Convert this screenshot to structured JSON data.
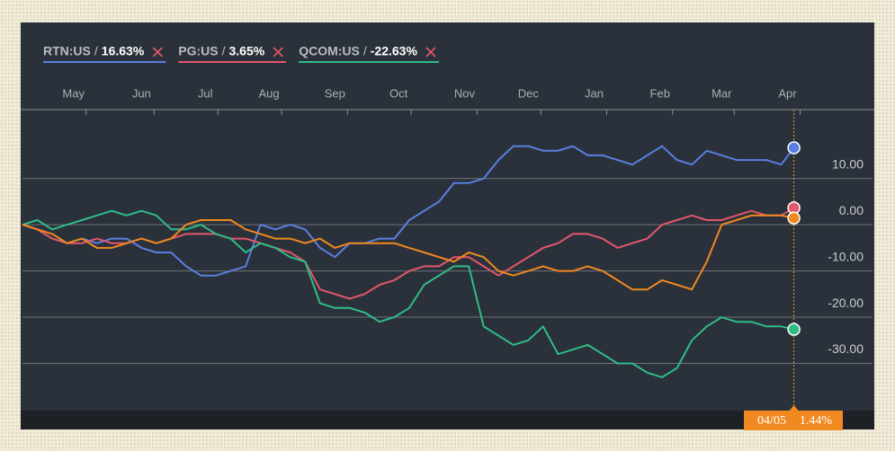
{
  "chart_data": {
    "type": "line",
    "legend_separator": "/",
    "x": [
      0,
      7,
      14,
      21,
      28,
      35,
      42,
      49,
      56,
      63,
      70,
      77,
      84,
      91,
      98,
      105,
      112,
      119,
      126,
      133,
      140,
      147,
      154,
      161,
      168,
      175,
      182,
      189,
      196,
      203,
      210,
      217,
      224,
      231,
      238,
      245,
      252,
      259,
      266,
      273,
      280,
      287,
      294,
      301,
      308,
      315,
      322,
      329,
      336,
      343,
      350,
      357,
      363
    ],
    "xlim": [
      0,
      400
    ],
    "xticks": [
      {
        "value": 24,
        "label": "May"
      },
      {
        "value": 56,
        "label": "Jun"
      },
      {
        "value": 86,
        "label": "Jul"
      },
      {
        "value": 116,
        "label": "Aug"
      },
      {
        "value": 147,
        "label": "Sep"
      },
      {
        "value": 177,
        "label": "Oct"
      },
      {
        "value": 208,
        "label": "Nov"
      },
      {
        "value": 238,
        "label": "Dec"
      },
      {
        "value": 269,
        "label": "Jan"
      },
      {
        "value": 300,
        "label": "Feb"
      },
      {
        "value": 329,
        "label": "Mar"
      },
      {
        "value": 360,
        "label": "Apr"
      }
    ],
    "ylim": [
      -40.2,
      24.9
    ],
    "yticks": [
      {
        "value": 10,
        "label": "10.00"
      },
      {
        "value": 0,
        "label": "0.00"
      },
      {
        "value": -10,
        "label": "-10.00"
      },
      {
        "value": -20,
        "label": "-20.00"
      },
      {
        "value": -30,
        "label": "-30.00"
      }
    ],
    "grid": true,
    "series": [
      {
        "name": "RTN:US",
        "change_label": "16.63%",
        "color": "#5a7fe2",
        "values": [
          0,
          -1,
          -3,
          -4,
          -3,
          -4,
          -3,
          -3,
          -5,
          -6,
          -6,
          -9,
          -11,
          -11,
          -10,
          -9,
          0,
          -1,
          0,
          -1,
          -5,
          -7,
          -4,
          -4,
          -3,
          -3,
          1,
          3,
          5,
          9,
          9,
          10,
          14,
          17,
          17,
          16,
          16,
          17,
          15,
          15,
          14,
          13,
          15,
          17,
          14,
          13,
          16,
          15,
          14,
          14,
          14,
          13,
          16.63
        ]
      },
      {
        "name": "PG:US",
        "change_label": "3.65%",
        "color": "#e2576c",
        "values": [
          0,
          -1,
          -3,
          -4,
          -4,
          -3,
          -4,
          -4,
          -3,
          -4,
          -3,
          -2,
          -2,
          -2,
          -3,
          -3,
          -4,
          -5,
          -6,
          -8,
          -14,
          -15,
          -16,
          -15,
          -13,
          -12,
          -10,
          -9,
          -9,
          -7,
          -7,
          -9,
          -11,
          -9,
          -7,
          -5,
          -4,
          -2,
          -2,
          -3,
          -5,
          -4,
          -3,
          0,
          1,
          2,
          1,
          1,
          2,
          3,
          2,
          2,
          3.65
        ]
      },
      {
        "name": "QCOM:US",
        "change_label": "-22.63%",
        "color": "#2ebd86",
        "values": [
          0,
          1,
          -1,
          0,
          1,
          2,
          3,
          2,
          3,
          2,
          -1,
          -1,
          0,
          -2,
          -3,
          -6,
          -4,
          -5,
          -7,
          -8,
          -17,
          -18,
          -18,
          -19,
          -21,
          -20,
          -18,
          -13,
          -11,
          -9,
          -9,
          -22,
          -24,
          -26,
          -25,
          -22,
          -28,
          -27,
          -26,
          -28,
          -30,
          -30,
          -32,
          -33,
          -31,
          -25,
          -22,
          -20,
          -21,
          -21,
          -22,
          -22,
          -22.63
        ]
      },
      {
        "color": "#f0891f",
        "values": [
          0,
          -1,
          -2,
          -4,
          -3,
          -5,
          -5,
          -4,
          -3,
          -4,
          -3,
          0,
          1,
          1,
          1,
          -1,
          -2,
          -3,
          -3,
          -4,
          -3,
          -5,
          -4,
          -4,
          -4,
          -4,
          -5,
          -6,
          -7,
          -8,
          -6,
          -7,
          -10,
          -11,
          -10,
          -9,
          -10,
          -10,
          -9,
          -10,
          -12,
          -14,
          -14,
          -12,
          -13,
          -14,
          -8,
          0,
          1,
          2,
          2,
          2,
          1.44
        ]
      }
    ],
    "tooltip": {
      "date": "04/05",
      "label": "1.44%"
    }
  }
}
